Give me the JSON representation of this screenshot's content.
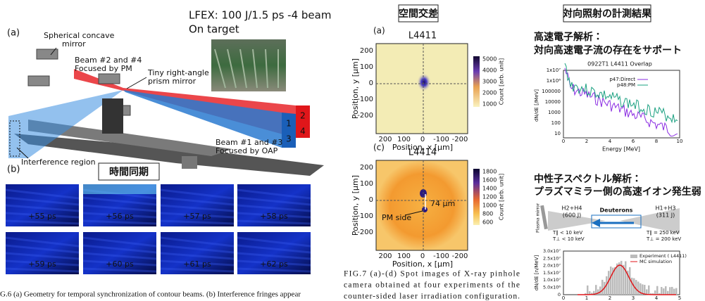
{
  "left": {
    "header": [
      "LFEX: 100 J/1.5 ps -4 beam",
      "On target"
    ],
    "label_a": "(a)",
    "mirror": [
      "Spherical concave",
      "mirror"
    ],
    "beam24": [
      "Beam #2 and #4",
      "Focused by PM"
    ],
    "prism": [
      "Tiny right-angle",
      "prism mirror"
    ],
    "beam_numbers": [
      "2",
      "4",
      "1",
      "3"
    ],
    "beam13": [
      "Beam #1 and #3",
      "Focused by OAP"
    ],
    "interference": "Interference region",
    "label_b": "(b)",
    "badge": "時間同期",
    "frames": [
      "+55 ps",
      "+56 ps",
      "+57 ps",
      "+58 ps",
      "+59 ps",
      "+60 ps",
      "+61 ps",
      "+62 ps"
    ],
    "caption": "G.6 (a) Geometry for temporal synchronization of contour beams. (b) Interference fringes appear"
  },
  "middle": {
    "badge": "空間交差",
    "panels": [
      {
        "label": "(a)",
        "title": "L4411",
        "xticks": [
          "200",
          "100",
          "0",
          "-100",
          "-200"
        ],
        "yticks": [
          "200",
          "100",
          "0",
          "-100",
          "-200"
        ],
        "cbar_ticks": [
          "5000",
          "4000",
          "3000",
          "2000",
          "1000"
        ]
      },
      {
        "label": "(c)",
        "title": "L4414",
        "xticks": [
          "200",
          "100",
          "0",
          "-100",
          "-200"
        ],
        "yticks": [
          "200",
          "100",
          "0",
          "-100",
          "-200"
        ],
        "cbar_ticks": [
          "1800",
          "1600",
          "1400",
          "1200",
          "1000",
          "800",
          "600"
        ]
      }
    ],
    "ylabel": "Position, y [μm]",
    "xlabel": "Position, x [μm]",
    "cbar_label": "Count [arb. unit]",
    "distance": "74 μm",
    "pm_side": "PM side",
    "caption": [
      "FIG.7 (a)-(d) Spot images of X-ray pinhole",
      "camera obtained at four experiments of the",
      "counter-sided laser irradiation configuration."
    ]
  },
  "right": {
    "badge": "対向照射の計測結果",
    "electron_heading": [
      "高速電子解析：",
      "対向高速電子流の存在をサポート"
    ],
    "electron_plot": {
      "title": "0922T1 L4411 Overlap",
      "yticks": [
        "1x10⁷",
        "1x10⁶",
        "100000",
        "10000",
        "1000",
        "100",
        "10"
      ],
      "xticks": [
        "0",
        "2",
        "4",
        "6",
        "8",
        "10"
      ],
      "xlabel": "Energy [MeV]",
      "ylabel": "dN/dE [/MeV]",
      "legend": [
        "p47:Direct",
        "p48:PM"
      ]
    },
    "neutron_heading": [
      "中性子スペクトル解析：",
      "プラズマミラー側の高速イオン発生弱"
    ],
    "diagram": {
      "mirror": "Plasma mirror",
      "left_beam": [
        "H2+H4",
        "(600 J)"
      ],
      "deuterons": "Deuterons",
      "right_beam": [
        "H1+H3",
        "(311 J)"
      ],
      "left_temps": [
        "T∥ < 10 keV",
        "T⊥ < 10 keV"
      ],
      "right_temps": [
        "T∥ = 250 keV",
        "T⊥ = 200 keV"
      ]
    },
    "neutron_plot": {
      "yticks": [
        "3.0x10⁷",
        "2.5x10⁷",
        "2.0x10⁷",
        "1.5x10⁷",
        "1.0x10⁷",
        "5.0x10⁶",
        "0"
      ],
      "xticks": [
        "0",
        "1",
        "2",
        "3",
        "4",
        "5"
      ],
      "ylabel": "dN/dE [n/MeV]",
      "legend": [
        "Experiment ( L4411)",
        "MC simulation"
      ]
    }
  }
}
